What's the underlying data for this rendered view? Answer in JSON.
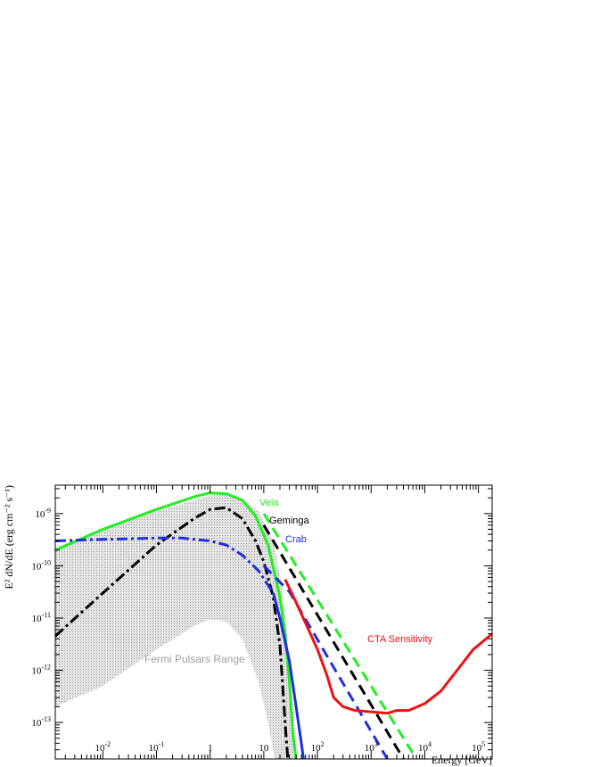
{
  "chart_data": {
    "type": "line",
    "xscale": "log",
    "yscale": "log",
    "xlim": [
      0.0013,
      180000
    ],
    "ylim": [
      2e-14,
      3.5e-09
    ],
    "xlabel": "Energy [GeV]",
    "ylabel": "E² dN/dE (erg cm⁻² s⁻¹)",
    "x_ticks": [
      {
        "value": 0.01,
        "base": "10",
        "exp": "-2"
      },
      {
        "value": 0.1,
        "base": "10",
        "exp": "-1"
      },
      {
        "value": 1,
        "base": "1",
        "exp": ""
      },
      {
        "value": 10,
        "base": "10",
        "exp": ""
      },
      {
        "value": 100,
        "base": "10",
        "exp": "2"
      },
      {
        "value": 1000,
        "base": "10",
        "exp": "3"
      },
      {
        "value": 10000,
        "base": "10",
        "exp": "4"
      },
      {
        "value": 100000,
        "base": "10",
        "exp": "5"
      }
    ],
    "y_ticks": [
      {
        "value": 1e-09,
        "base": "10",
        "exp": "-9"
      },
      {
        "value": 1e-10,
        "base": "10",
        "exp": "-10"
      },
      {
        "value": 1e-11,
        "base": "10",
        "exp": "-11"
      },
      {
        "value": 1e-12,
        "base": "10",
        "exp": "-12"
      },
      {
        "value": 1e-13,
        "base": "10",
        "exp": "-13"
      }
    ],
    "range_band": {
      "name": "Fermi Pulsars Range",
      "color": "#c8c8c8",
      "upper": [
        [
          0.0013,
          2.2e-10
        ],
        [
          0.01,
          5e-10
        ],
        [
          0.1,
          1.1e-09
        ],
        [
          1,
          2.2e-09
        ],
        [
          2,
          2.3e-09
        ],
        [
          4,
          1.9e-09
        ],
        [
          8,
          1.1e-09
        ],
        [
          15,
          3e-10
        ],
        [
          22,
          4e-11
        ],
        [
          30,
          1.5e-12
        ],
        [
          40,
          2e-14
        ]
      ],
      "lower": [
        [
          0.0013,
          2e-13
        ],
        [
          0.01,
          5e-13
        ],
        [
          0.1,
          2.5e-12
        ],
        [
          0.5,
          7e-12
        ],
        [
          1,
          9.5e-12
        ],
        [
          2,
          8.5e-12
        ],
        [
          4,
          4e-12
        ],
        [
          8,
          6e-13
        ],
        [
          12,
          1e-13
        ],
        [
          16,
          2e-14
        ]
      ]
    },
    "series": [
      {
        "name": "Vela",
        "color": "#22ee22",
        "dash": "solid",
        "points": [
          [
            0.0013,
            2e-10
          ],
          [
            0.01,
            5e-10
          ],
          [
            0.1,
            1.2e-09
          ],
          [
            0.5,
            2.1e-09
          ],
          [
            1,
            2.5e-09
          ],
          [
            2,
            2.4e-09
          ],
          [
            4,
            1.8e-09
          ],
          [
            7,
            9e-10
          ],
          [
            12,
            2.5e-10
          ],
          [
            20,
            2.5e-11
          ],
          [
            25,
            5e-12
          ],
          [
            30,
            6e-13
          ],
          [
            35,
            6e-14
          ],
          [
            40,
            2e-14
          ]
        ]
      },
      {
        "name": "Vela",
        "color": "#22ee22",
        "dash": "dashed",
        "points": [
          [
            10,
            1e-09
          ],
          [
            7000,
            2e-14
          ]
        ]
      },
      {
        "name": "Geminga",
        "color": "#000000",
        "dash": "dashdot",
        "points": [
          [
            0.0013,
            4.5e-12
          ],
          [
            0.01,
            3e-11
          ],
          [
            0.1,
            2.5e-10
          ],
          [
            0.5,
            8e-10
          ],
          [
            1,
            1.2e-09
          ],
          [
            2,
            1.3e-09
          ],
          [
            4,
            8e-10
          ],
          [
            7,
            3e-10
          ],
          [
            10,
            1.2e-10
          ],
          [
            15,
            2.5e-11
          ],
          [
            20,
            3e-12
          ],
          [
            25,
            1e-13
          ],
          [
            28,
            2e-14
          ]
        ]
      },
      {
        "name": "Geminga",
        "color": "#000000",
        "dash": "dashed",
        "points": [
          [
            10,
            6e-10
          ],
          [
            4000,
            2e-14
          ]
        ]
      },
      {
        "name": "Crab",
        "color": "#1e2ee0",
        "dash": "dashdot",
        "points": [
          [
            0.0013,
            3e-10
          ],
          [
            0.01,
            3.2e-10
          ],
          [
            0.1,
            3.4e-10
          ],
          [
            0.3,
            3.4e-10
          ],
          [
            1,
            3e-10
          ],
          [
            2,
            2.5e-10
          ],
          [
            4,
            1.6e-10
          ],
          [
            8,
            8e-11
          ],
          [
            15,
            3e-11
          ]
        ]
      },
      {
        "name": "Crab",
        "color": "#1e2ee0",
        "dash": "solid",
        "points": [
          [
            15,
            3e-11
          ],
          [
            20,
            1e-11
          ],
          [
            30,
            1.5e-12
          ],
          [
            40,
            2e-13
          ],
          [
            50,
            4e-14
          ],
          [
            55,
            2e-14
          ]
        ]
      },
      {
        "name": "Crab",
        "color": "#1e2ee0",
        "dash": "dashed",
        "points": [
          [
            10,
            1e-10
          ],
          [
            30,
            3.2e-11
          ],
          [
            2000,
            2e-14
          ]
        ]
      },
      {
        "name": "CTA Sensitivity",
        "color": "#ee1111",
        "dash": "solid",
        "points": [
          [
            25,
            5.5e-11
          ],
          [
            40,
            2e-11
          ],
          [
            60,
            8e-12
          ],
          [
            100,
            2.5e-12
          ],
          [
            150,
            8e-13
          ],
          [
            200,
            3e-13
          ],
          [
            300,
            2e-13
          ],
          [
            500,
            1.7e-13
          ],
          [
            1000,
            1.6e-13
          ],
          [
            2000,
            1.5e-13
          ],
          [
            3000,
            1.7e-13
          ],
          [
            5000,
            1.7e-13
          ],
          [
            10000,
            2.3e-13
          ],
          [
            20000,
            4e-13
          ],
          [
            40000,
            1e-12
          ],
          [
            80000,
            2.5e-12
          ],
          [
            180000,
            5e-12
          ]
        ]
      }
    ],
    "labels": [
      {
        "text": "Vela",
        "color": "#22ee22"
      },
      {
        "text": "Geminga",
        "color": "#000000"
      },
      {
        "text": "Crab",
        "color": "#1e2ee0"
      },
      {
        "text": "CTA Sensitivity",
        "color": "#ee1111"
      },
      {
        "text": "Fermi Pulsars Range",
        "color": "#a0a0a0"
      }
    ]
  }
}
